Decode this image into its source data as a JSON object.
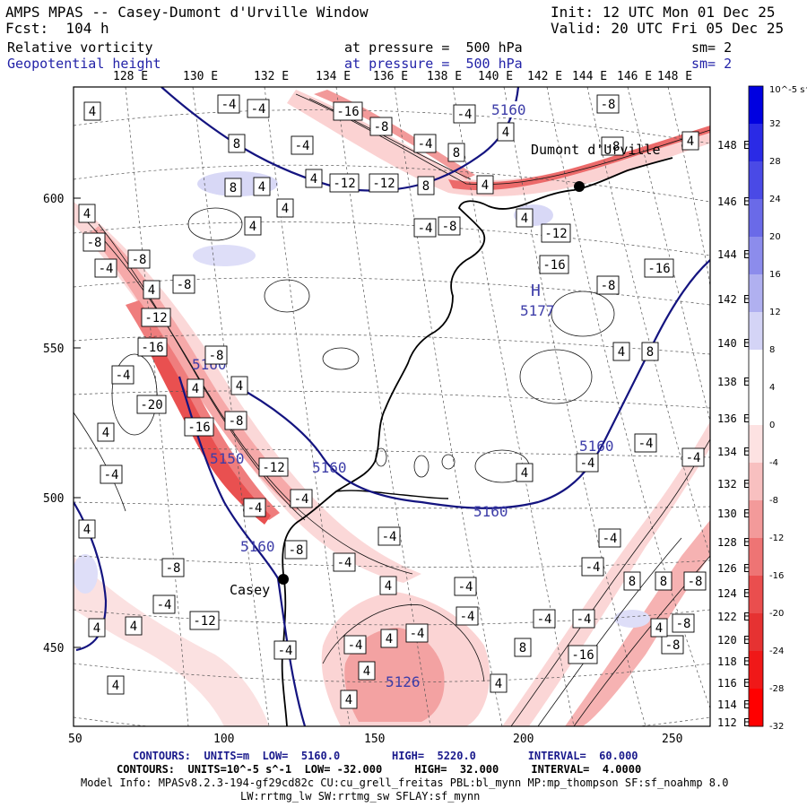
{
  "header": {
    "title": "AMPS MPAS -- Casey-Dumont d'Urville Window",
    "init": "Init: 12 UTC Mon 01 Dec 25",
    "fcst": "Fcst:  104 h",
    "valid": "Valid: 20 UTC Fri 05 Dec 25",
    "field1_name": "Relative vorticity",
    "field1_level": "at pressure =  500 hPa",
    "field1_sm": "sm= 2",
    "field2_name": "Geopotential height",
    "field2_level": "at pressure =  500 hPa",
    "field2_sm": "sm= 2"
  },
  "axes": {
    "top_lon": [
      "128 E",
      "130 E",
      "132 E",
      "134 E",
      "136 E",
      "138 E",
      "140 E",
      "142 E",
      "144 E",
      "146 E",
      "148 E"
    ],
    "right_lon": [
      "148 E",
      "146 E",
      "144 E",
      "142 E",
      "140 E",
      "138 E",
      "136 E",
      "134 E",
      "132 E",
      "130 E",
      "128 E",
      "126 E",
      "124 E",
      "122 E",
      "120 E",
      "118 E",
      "116 E",
      "114 E",
      "112 E"
    ],
    "x_ticks": [
      "50",
      "100",
      "150",
      "200",
      "250"
    ],
    "y_ticks": [
      "600",
      "550",
      "500",
      "450"
    ]
  },
  "colorbar": {
    "unit": "10^-5 s^-1",
    "labels": [
      "32",
      "28",
      "24",
      "20",
      "16",
      "12",
      "8",
      "4",
      "0",
      "-4",
      "-8",
      "-12",
      "-16",
      "-20",
      "-24",
      "-28",
      "-32"
    ],
    "colors": [
      "#0000e0",
      "#2a2ae6",
      "#4a4ae6",
      "#6a6ae8",
      "#8c8cec",
      "#b0b0f0",
      "#d4d4f6",
      "#ffffff",
      "#ffffff",
      "#fde2e2",
      "#f8c0c0",
      "#f39a9a",
      "#ee7474",
      "#ea4e4e",
      "#e63232",
      "#f01818",
      "#ff0000"
    ]
  },
  "map": {
    "stations": [
      {
        "name": "Casey"
      },
      {
        "name": "Dumont d'Urville"
      }
    ],
    "height_labels": [
      "5160",
      "5177",
      "5160",
      "5150",
      "5160",
      "5160",
      "5160",
      "5126"
    ],
    "high_marker": "H",
    "vort_boxes": [
      "4",
      "-4",
      "-4",
      "-16",
      "-8",
      "-4",
      "4",
      "-4",
      "8",
      "-8",
      "-12",
      "-12",
      "8",
      "-4",
      "4",
      "8",
      "4",
      "-8",
      "4",
      "4",
      "8",
      "4",
      "4",
      "4",
      "-4",
      "-8",
      "4",
      "-12",
      "-8",
      "-16",
      "-8",
      "-4",
      "-8",
      "4",
      "-12",
      "-16",
      "-8",
      "-16",
      "-8",
      "4",
      "-4",
      "4",
      "-16",
      "-20",
      "4",
      "-8",
      "-12",
      "-4",
      "4",
      "-4",
      "-4",
      "-4",
      "-4",
      "-4",
      "-4",
      "-8",
      "-4",
      "4",
      "-4",
      "-4",
      "-4",
      "8",
      "8",
      "-8",
      "-4",
      "-4",
      "-4",
      "-8",
      "-12",
      "-4",
      "-8",
      "8",
      "-16",
      "-8",
      "4",
      "-4",
      "4",
      "4",
      "4",
      "4",
      "4",
      "4",
      "4",
      "4",
      "8",
      "4",
      "-4",
      "-4",
      "4"
    ]
  },
  "footer": {
    "contours_z": "CONTOURS:  UNITS=m  LOW=  5160.0        HIGH=  5220.0        INTERVAL=  60.000",
    "contours_v": "CONTOURS:  UNITS=10^-5 s^-1  LOW= -32.000     HIGH=  32.000     INTERVAL=  4.0000",
    "model_info": "Model Info: MPASv8.2.3-194-gf29cd82c CU:cu_grell_freitas PBL:bl_mynn MP:mp_thompson SF:sf_noahmp 8.0",
    "model_info2": "LW:rrtmg_lw SW:rrtmg_sw SFLAY:sf_mynn"
  }
}
